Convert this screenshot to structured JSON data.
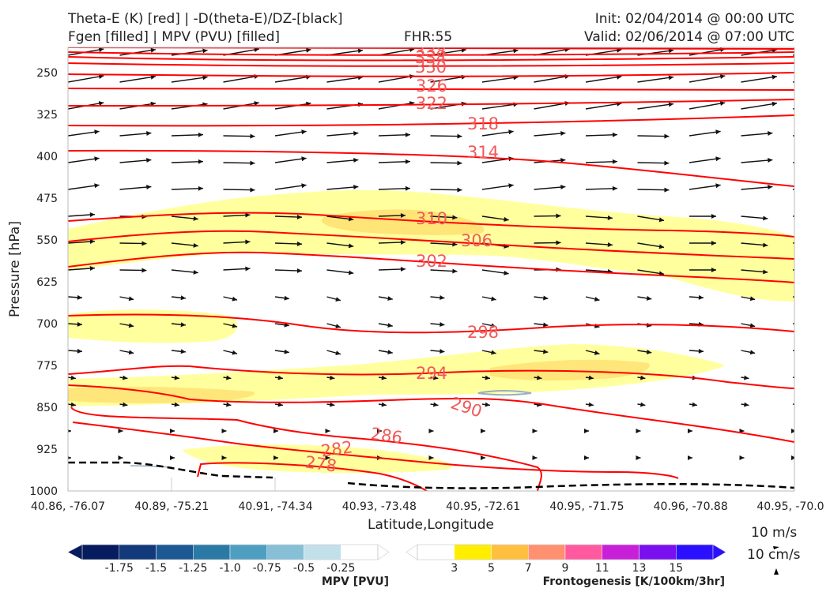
{
  "header": {
    "title_left_1": "Theta-E (K) [red] | -D(theta-E)/DZ-[black]",
    "title_left_2": "Fgen [filled] | MPV (PVU) [filled]",
    "fhr": "FHR:55",
    "init": "Init: 02/04/2014 @ 00:00 UTC",
    "valid": "Valid: 02/06/2014 @ 07:00 UTC"
  },
  "chart_data": {
    "type": "cross-section",
    "xlabel": "Latitude,Longitude",
    "ylabel": "Pressure [hPa]",
    "x_ticks": [
      "40.86, -76.07",
      "40.89, -75.21",
      "40.91, -74.34",
      "40.93, -73.48",
      "40.95, -72.61",
      "40.95, -71.75",
      "40.96, -70.88",
      "40.95, -70.0"
    ],
    "y_ticks": [
      250,
      325,
      400,
      475,
      550,
      625,
      700,
      775,
      850,
      925,
      1000
    ],
    "ylim": [
      1000,
      205
    ],
    "theta_e_contour_labels": [
      338,
      334,
      330,
      326,
      322,
      318,
      314,
      310,
      306,
      302,
      298,
      294,
      290,
      286,
      282,
      278
    ],
    "theta_e_color": "#ff0000",
    "label_color": "#f05a5a",
    "vector_scale": {
      "speed": "10 m/s",
      "vertical": "10 cm/s"
    },
    "mpv_colorbar": {
      "title": "MPV [PVU]",
      "ticks": [
        "-1.75",
        "-1.5",
        "-1.25",
        "-1.0",
        "-0.75",
        "-0.5",
        "-0.25"
      ],
      "colors": [
        "#061c5e",
        "#123a7a",
        "#1c5894",
        "#2b7aa6",
        "#4e9ec2",
        "#86bfd6",
        "#c2e0ea",
        "#ffffff"
      ]
    },
    "fgen_colorbar": {
      "title": "Frontogenesis [K/100km/3hr]",
      "ticks": [
        "3",
        "5",
        "7",
        "9",
        "11",
        "13",
        "15"
      ],
      "colors": [
        "#ffffff",
        "#ffee00",
        "#ffc040",
        "#ff9070",
        "#ff5aa0",
        "#c820d8",
        "#7a10f0",
        "#2a10ff"
      ]
    }
  }
}
